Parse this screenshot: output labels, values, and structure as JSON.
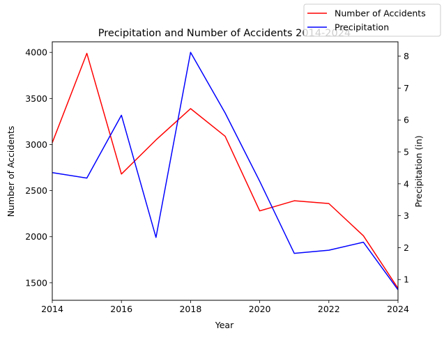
{
  "chart_data": {
    "type": "line",
    "title": "Precipitation and Number of Accidents 2014-2024",
    "xlabel": "Year",
    "ylabel_left": "Number of Accidents",
    "ylabel_right": "Precipitation (in)",
    "x": [
      2014,
      2015,
      2016,
      2017,
      2018,
      2019,
      2020,
      2021,
      2022,
      2023,
      2024
    ],
    "xlim": [
      2014,
      2024
    ],
    "xticks": [
      2014,
      2016,
      2018,
      2020,
      2022,
      2024
    ],
    "ylim_left": [
      1310,
      4115
    ],
    "yticks_left": [
      1500,
      2000,
      2500,
      3000,
      3500,
      4000
    ],
    "ylim_right": [
      0.35,
      8.45
    ],
    "yticks_right": [
      1,
      2,
      3,
      4,
      5,
      6,
      7,
      8
    ],
    "grid": false,
    "legend_position": "top-right, outside axes",
    "series": [
      {
        "name": "Number of Accidents",
        "axis": "left",
        "color": "#ff0000",
        "values": [
          3020,
          3990,
          2680,
          3050,
          3390,
          3090,
          2280,
          2390,
          2360,
          2010,
          1440
        ]
      },
      {
        "name": "Precipitation",
        "axis": "right",
        "color": "#0000ff",
        "values": [
          4.35,
          4.18,
          6.15,
          2.32,
          8.12,
          6.22,
          4.08,
          1.82,
          1.92,
          2.17,
          0.68
        ]
      }
    ]
  }
}
